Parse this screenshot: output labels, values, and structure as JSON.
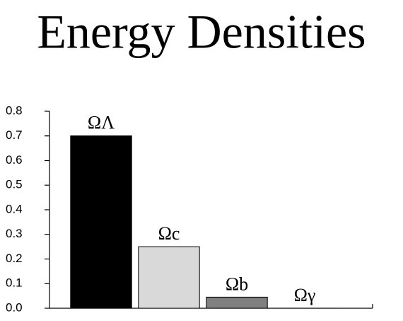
{
  "chart_data": {
    "type": "bar",
    "title": "Energy Densities",
    "categories": [
      "ΩΛ",
      "Ωc",
      "Ωb",
      "Ωγ"
    ],
    "values": [
      0.7,
      0.25,
      0.045,
      0.0001
    ],
    "colors": [
      "#000000",
      "#d9d9d9",
      "#808080",
      "#000000"
    ],
    "ylim": [
      0,
      0.8
    ],
    "yticks": [
      {
        "value": 0,
        "label": "0.0"
      },
      0.1,
      0.2,
      0.3,
      0.4,
      0.5,
      0.6,
      0.7,
      0.8
    ]
  }
}
